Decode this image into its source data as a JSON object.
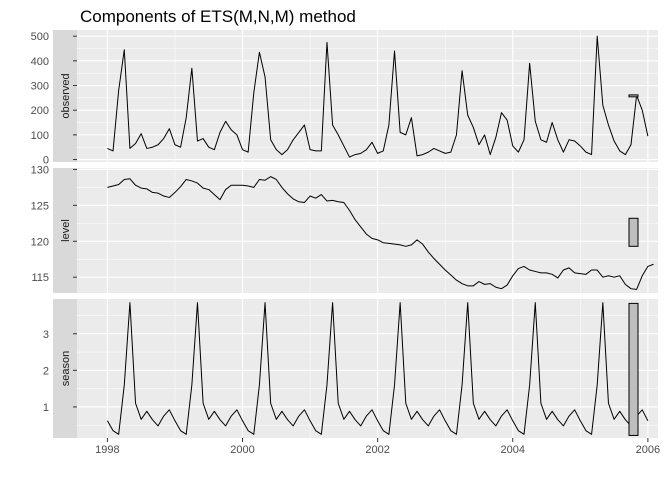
{
  "chart_data": {
    "type": "line",
    "title": "Components of ETS(M,N,M) method",
    "xlabel": "",
    "x_ticks": [
      "1998",
      "2000",
      "2002",
      "2004",
      "2006"
    ],
    "x_tick_values": [
      1998,
      2000,
      2002,
      2004,
      2006
    ],
    "xlim": [
      1997.55,
      2006.15
    ],
    "frequency": 12,
    "series_start": 1998.0,
    "grid": true,
    "panels": [
      {
        "strip": "observed",
        "ylim": [
          -10,
          525
        ],
        "y_ticks": [
          0,
          100,
          200,
          300,
          400,
          500
        ],
        "values": [
          45,
          35,
          280,
          445,
          45,
          65,
          105,
          45,
          50,
          60,
          85,
          125,
          60,
          50,
          170,
          370,
          75,
          85,
          50,
          40,
          110,
          155,
          120,
          100,
          40,
          30,
          270,
          435,
          335,
          80,
          40,
          20,
          40,
          80,
          110,
          140,
          40,
          35,
          35,
          475,
          140,
          100,
          55,
          10,
          20,
          25,
          40,
          70,
          25,
          35,
          140,
          440,
          110,
          100,
          170,
          15,
          20,
          30,
          45,
          35,
          25,
          30,
          100,
          360,
          180,
          130,
          60,
          100,
          20,
          90,
          190,
          160,
          55,
          30,
          80,
          390,
          155,
          80,
          70,
          150,
          80,
          30,
          80,
          75,
          55,
          30,
          20,
          500,
          220,
          140,
          75,
          35,
          20,
          60,
          260,
          200,
          95
        ],
        "range_bar": {
          "low": 254,
          "high": 262
        }
      },
      {
        "strip": "level",
        "ylim": [
          112.8,
          130.2
        ],
        "y_ticks": [
          115,
          120,
          125,
          130
        ],
        "values": [
          127.5,
          127.7,
          127.9,
          128.6,
          128.7,
          127.8,
          127.4,
          127.3,
          126.8,
          126.7,
          126.3,
          126.1,
          126.8,
          127.6,
          128.6,
          128.4,
          128.1,
          127.4,
          127.2,
          126.5,
          125.8,
          127.2,
          127.8,
          127.8,
          127.8,
          127.7,
          127.5,
          128.6,
          128.5,
          129.0,
          128.6,
          127.5,
          126.6,
          125.9,
          125.5,
          125.4,
          126.3,
          126.0,
          126.5,
          125.6,
          125.7,
          125.5,
          125.4,
          124.3,
          123.0,
          122.0,
          121.0,
          120.4,
          120.2,
          119.8,
          119.7,
          119.6,
          119.5,
          119.3,
          119.5,
          120.2,
          119.6,
          118.5,
          117.6,
          116.8,
          116.0,
          115.3,
          114.6,
          114.1,
          113.8,
          113.8,
          114.4,
          114.0,
          114.1,
          113.6,
          113.4,
          113.9,
          115.2,
          116.2,
          116.5,
          116.0,
          115.8,
          115.6,
          115.6,
          115.4,
          114.9,
          116.0,
          116.3,
          115.6,
          115.5,
          115.4,
          116.0,
          116.0,
          115.0,
          115.2,
          115.0,
          115.2,
          114.0,
          113.4,
          113.3,
          115.2,
          116.5,
          116.8
        ],
        "range_bar": {
          "low": 119.3,
          "high": 123.2
        }
      },
      {
        "strip": "season",
        "ylim": [
          0.15,
          3.95
        ],
        "y_ticks": [
          1,
          2,
          3
        ],
        "values": [
          0.62,
          0.35,
          0.25,
          1.6,
          3.85,
          1.1,
          0.66,
          0.88,
          0.65,
          0.48,
          0.75,
          0.92,
          0.62,
          0.35,
          0.25,
          1.6,
          3.85,
          1.1,
          0.66,
          0.88,
          0.65,
          0.48,
          0.75,
          0.92,
          0.62,
          0.35,
          0.25,
          1.6,
          3.85,
          1.1,
          0.66,
          0.88,
          0.65,
          0.48,
          0.75,
          0.92,
          0.62,
          0.35,
          0.25,
          1.6,
          3.85,
          1.1,
          0.66,
          0.88,
          0.65,
          0.48,
          0.75,
          0.92,
          0.62,
          0.35,
          0.25,
          1.6,
          3.85,
          1.1,
          0.66,
          0.88,
          0.65,
          0.48,
          0.75,
          0.92,
          0.62,
          0.35,
          0.25,
          1.6,
          3.85,
          1.1,
          0.66,
          0.88,
          0.65,
          0.48,
          0.75,
          0.92,
          0.62,
          0.35,
          0.25,
          1.6,
          3.85,
          1.1,
          0.66,
          0.88,
          0.65,
          0.48,
          0.75,
          0.92,
          0.62,
          0.35,
          0.25,
          1.6,
          3.85,
          1.1,
          0.66,
          0.88,
          0.65,
          0.48,
          0.75,
          0.92,
          0.62
        ],
        "range_bar": {
          "low": 0.22,
          "high": 3.83
        }
      }
    ],
    "colors": {
      "panel_background": "#ebebeb",
      "strip_background": "#d9d9d9",
      "grid_major": "#ffffff",
      "line": "#000000",
      "range_bar_fill": "#bebebe"
    }
  }
}
